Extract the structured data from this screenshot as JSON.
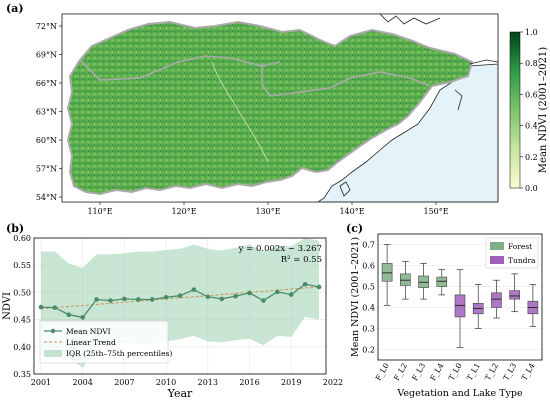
{
  "panels": {
    "a": "(a)",
    "b": "(b)",
    "c": "(c)"
  },
  "map": {
    "lat_ticks": [
      "72°N",
      "69°N",
      "66°N",
      "63°N",
      "60°N",
      "57°N",
      "54°N"
    ],
    "lon_ticks": [
      "110°E",
      "120°E",
      "130°E",
      "140°E",
      "150°E"
    ],
    "colorbar": {
      "label": "Mean NDVI (2001–2021)",
      "ticks": [
        "0.0",
        "0.2",
        "0.4",
        "0.6",
        "0.8",
        "1.0"
      ],
      "colors": [
        "#fafad2",
        "#c8e6a0",
        "#7cc46a",
        "#2e9a48",
        "#00441b"
      ]
    },
    "land_color": "#5fb04f",
    "sea_color": "#e4f3fa"
  },
  "chart_data": [
    {
      "type": "line",
      "xlabel": "Year",
      "ylabel": "NDVI",
      "xlim": [
        2000.5,
        2021.5
      ],
      "ylim": [
        0.35,
        0.6
      ],
      "x_ticks": [
        "2001",
        "2004",
        "2007",
        "2010",
        "2013",
        "2016",
        "2019",
        "2022"
      ],
      "y_ticks": [
        "0.35",
        "0.40",
        "0.45",
        "0.50",
        "0.55",
        "0.60"
      ],
      "grid": true,
      "legend_position": "bottom-left",
      "x": [
        2001,
        2002,
        2003,
        2004,
        2005,
        2006,
        2007,
        2008,
        2009,
        2010,
        2011,
        2012,
        2013,
        2014,
        2015,
        2016,
        2017,
        2018,
        2019,
        2020,
        2021
      ],
      "series": [
        {
          "name": "Mean NDVI",
          "values": [
            0.473,
            0.472,
            0.459,
            0.454,
            0.487,
            0.485,
            0.488,
            0.487,
            0.487,
            0.491,
            0.494,
            0.505,
            0.492,
            0.488,
            0.493,
            0.499,
            0.485,
            0.501,
            0.496,
            0.515,
            0.51
          ],
          "color": "#4a8c6a"
        },
        {
          "name": "Linear Trend",
          "values": [
            0.47,
            0.472,
            0.474,
            0.476,
            0.478,
            0.48,
            0.482,
            0.484,
            0.486,
            0.488,
            0.49,
            0.492,
            0.494,
            0.496,
            0.498,
            0.5,
            0.502,
            0.504,
            0.506,
            0.508,
            0.51
          ],
          "color": "#c89a5a"
        },
        {
          "name": "IQR (25th–75th percentiles)",
          "lower": [
            0.395,
            0.39,
            0.378,
            0.362,
            0.398,
            0.4,
            0.408,
            0.405,
            0.405,
            0.41,
            0.414,
            0.42,
            0.41,
            0.408,
            0.412,
            0.415,
            0.403,
            0.42,
            0.418,
            0.455,
            0.45
          ],
          "upper": [
            0.575,
            0.575,
            0.553,
            0.545,
            0.57,
            0.57,
            0.572,
            0.575,
            0.575,
            0.578,
            0.58,
            0.588,
            0.58,
            0.577,
            0.582,
            0.588,
            0.575,
            0.585,
            0.585,
            0.6,
            0.595
          ],
          "color": "#9ccfb0"
        }
      ],
      "annotations": [
        "y = 0.002x − 3.267",
        "R² = 0.55"
      ]
    },
    {
      "type": "box",
      "xlabel": "Vegetation and Lake Type",
      "ylabel": "Mean NDVI (2001–2021)",
      "ylim": [
        0.15,
        0.75
      ],
      "y_ticks": [
        "0.2",
        "0.3",
        "0.4",
        "0.5",
        "0.6",
        "0.7"
      ],
      "categories": [
        "F_L0",
        "F_L2",
        "F_L3",
        "F_L4",
        "T_L0",
        "T_L1",
        "T_L2",
        "T_L3",
        "T_L4"
      ],
      "legend_position": "top-right",
      "series": [
        {
          "name": "Forest",
          "color": "#7fae86"
        },
        {
          "name": "Tundra",
          "color": "#a05fb8"
        }
      ],
      "boxes": [
        {
          "category": "F_L0",
          "group": "Forest",
          "min": 0.41,
          "q1": 0.525,
          "median": 0.565,
          "q3": 0.61,
          "max": 0.7
        },
        {
          "category": "F_L2",
          "group": "Forest",
          "min": 0.44,
          "q1": 0.505,
          "median": 0.53,
          "q3": 0.56,
          "max": 0.62
        },
        {
          "category": "F_L3",
          "group": "Forest",
          "min": 0.44,
          "q1": 0.495,
          "median": 0.52,
          "q3": 0.55,
          "max": 0.61
        },
        {
          "category": "F_L4",
          "group": "Forest",
          "min": 0.46,
          "q1": 0.5,
          "median": 0.525,
          "q3": 0.545,
          "max": 0.58
        },
        {
          "category": "T_L0",
          "group": "Tundra",
          "min": 0.21,
          "q1": 0.355,
          "median": 0.41,
          "q3": 0.46,
          "max": 0.58
        },
        {
          "category": "T_L1",
          "group": "Tundra",
          "min": 0.3,
          "q1": 0.37,
          "median": 0.395,
          "q3": 0.42,
          "max": 0.51
        },
        {
          "category": "T_L2",
          "group": "Tundra",
          "min": 0.35,
          "q1": 0.4,
          "median": 0.44,
          "q3": 0.47,
          "max": 0.53
        },
        {
          "category": "T_L3",
          "group": "Tundra",
          "min": 0.38,
          "q1": 0.44,
          "median": 0.455,
          "q3": 0.48,
          "max": 0.56
        },
        {
          "category": "T_L4",
          "group": "Tundra",
          "min": 0.31,
          "q1": 0.37,
          "median": 0.4,
          "q3": 0.43,
          "max": 0.51
        }
      ]
    }
  ]
}
